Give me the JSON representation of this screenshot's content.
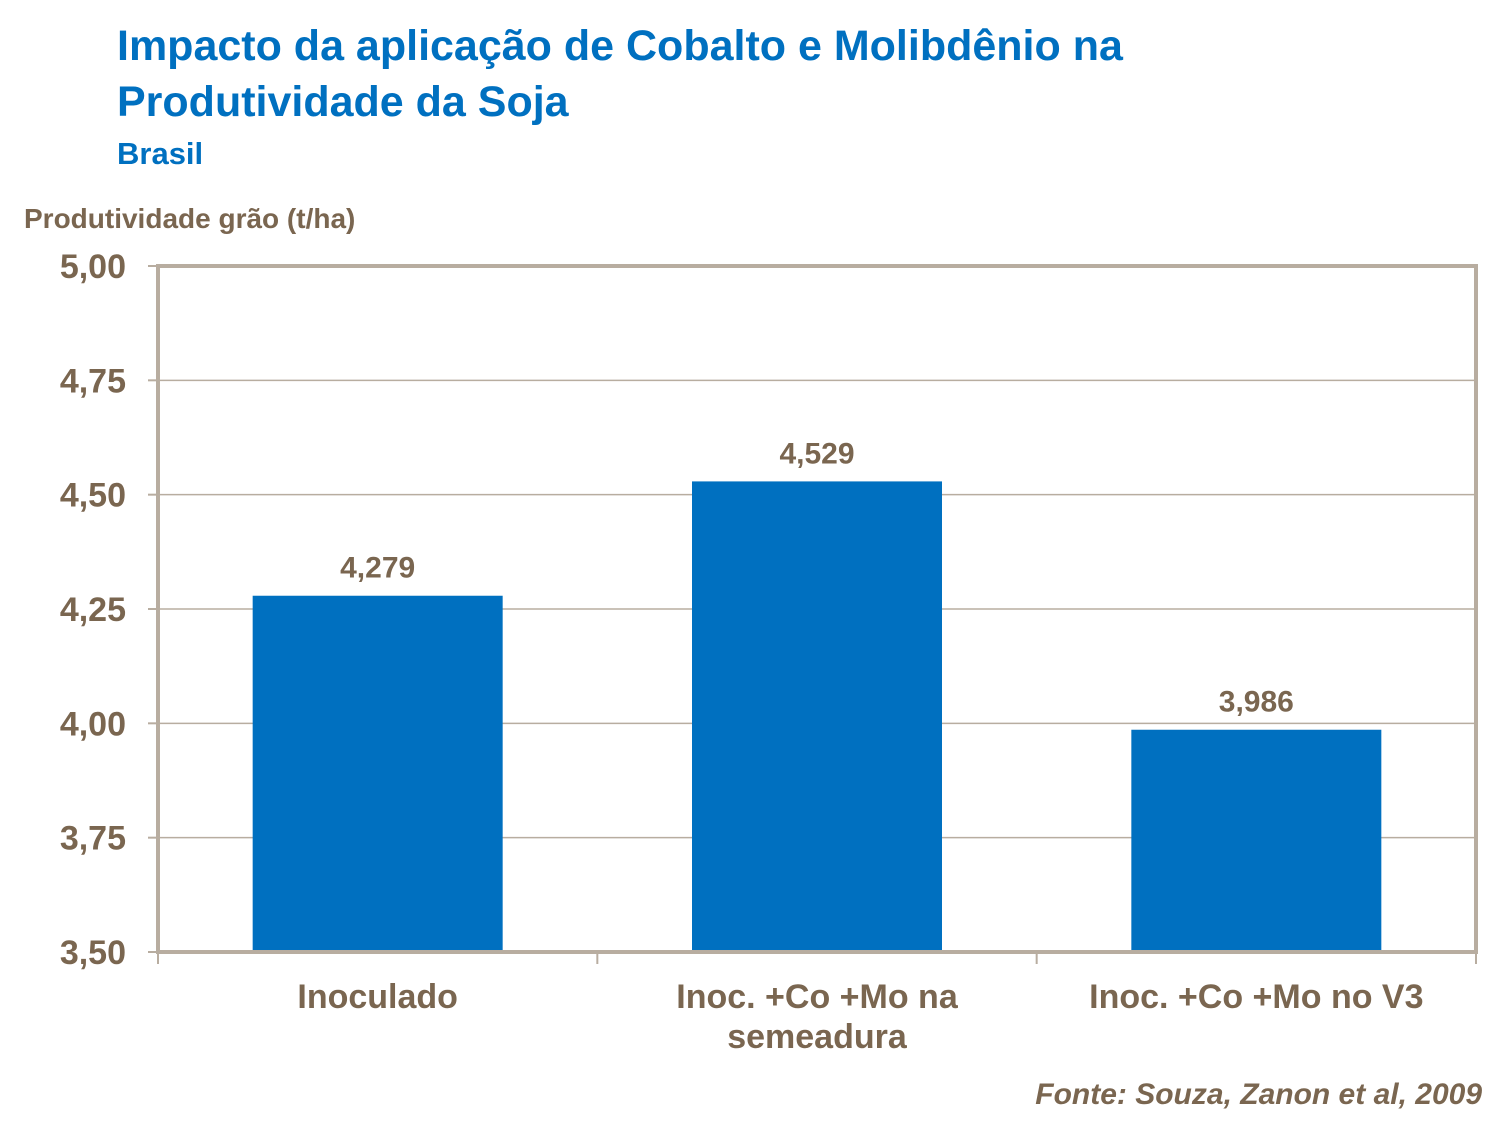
{
  "chart_data": {
    "type": "bar",
    "title": "Impacto da aplicação de Cobalto e Molibdênio na Produtividade da Soja",
    "title_lines": [
      "Impacto da aplicação de Cobalto e Molibdênio na",
      "Produtividade da Soja"
    ],
    "subtitle": "Brasil",
    "xlabel": "",
    "ylabel": "Produtividade grão (t/ha)",
    "categories": [
      [
        "Inoculado"
      ],
      [
        "Inoc. +Co +Mo na",
        "semeadura"
      ],
      [
        "Inoc. +Co +Mo no V3"
      ]
    ],
    "values": [
      4.279,
      4.529,
      3.986
    ],
    "data_labels": [
      "4,279",
      "4,529",
      "3,986"
    ],
    "ylim": [
      3.5,
      5.0
    ],
    "yticks": [
      3.5,
      3.75,
      4.0,
      4.25,
      4.5,
      4.75,
      5.0
    ],
    "ytick_labels": [
      "3,50",
      "3,75",
      "4,00",
      "4,25",
      "4,50",
      "4,75",
      "5,00"
    ],
    "grid": true,
    "legend": "none",
    "source": "Fonte: Souza, Zanon et al, 2009",
    "colors": {
      "bar": "#0070c0",
      "title": "#0070c0",
      "text": "#7a6650",
      "axis": "#b8ada0"
    }
  }
}
